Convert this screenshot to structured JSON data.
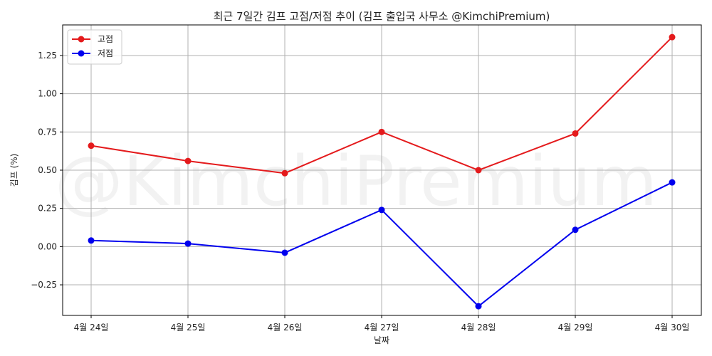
{
  "chart_data": {
    "type": "line",
    "title": "최근 7일간 김프 고점/저점 추이 (김프 출입국 사무소 @KimchiPremium)",
    "xlabel": "날짜",
    "ylabel": "김프 (%)",
    "categories": [
      "4월 24일",
      "4월 25일",
      "4월 26일",
      "4월 27일",
      "4월 28일",
      "4월 29일",
      "4월 30일"
    ],
    "series": [
      {
        "name": "고점",
        "color": "#e41a1c",
        "marker": "circle",
        "values": [
          0.66,
          0.56,
          0.48,
          0.75,
          0.5,
          0.74,
          1.37
        ]
      },
      {
        "name": "저점",
        "color": "#0000ee",
        "marker": "circle",
        "values": [
          0.04,
          0.02,
          -0.04,
          0.24,
          -0.39,
          0.11,
          0.42
        ]
      }
    ],
    "ylim": [
      -0.45,
      1.45
    ],
    "yticks": [
      -0.25,
      0.0,
      0.25,
      0.5,
      0.75,
      1.0,
      1.25
    ],
    "ytick_labels": [
      "−0.25",
      "0.00",
      "0.25",
      "0.50",
      "0.75",
      "1.00",
      "1.25"
    ],
    "grid": true,
    "legend_position": "top-left",
    "watermark": "@KimchiPremium"
  }
}
